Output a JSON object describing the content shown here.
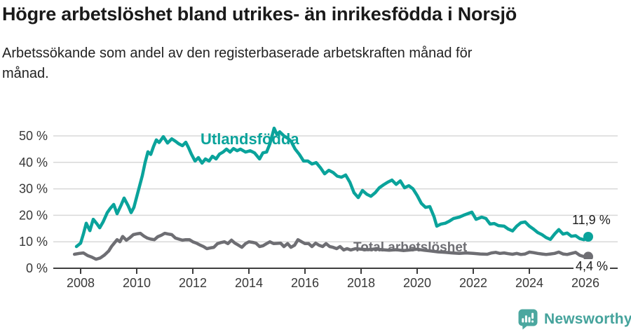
{
  "header": {
    "title": "Högre arbetslöshet bland utrikes- än inrikesfödda i Norsjö",
    "subtitle": "Arbetssökande som andel av den registerbaserade arbetskraften månad för månad."
  },
  "footer": {
    "brand": "Newsworthy",
    "logo_icon": "newsworthy-speech-bubble-bar-chart",
    "logo_color": "#4ba79f"
  },
  "chart_data": {
    "type": "line",
    "title": "Högre arbetslöshet bland utrikes- än inrikesfödda i Norsjö",
    "subtitle": "Arbetssökande som andel av den registerbaserade arbetskraften månad för månad.",
    "grid": true,
    "legend_position": "inline-labels-on-chart",
    "x_axis": {
      "label": "",
      "ticks": [
        2008,
        2010,
        2012,
        2014,
        2016,
        2018,
        2020,
        2022,
        2024,
        2026
      ],
      "tick_labels": [
        "2008",
        "2010",
        "2012",
        "2014",
        "2016",
        "2018",
        "2020",
        "2022",
        "2024",
        "2026"
      ],
      "range": [
        2007.75,
        2026.6
      ]
    },
    "y_axis": {
      "label": "",
      "unit": "%",
      "ticks": [
        0,
        10,
        20,
        30,
        40,
        50
      ],
      "tick_labels": [
        "0 %",
        "10 %",
        "20 %",
        "30 %",
        "40 %",
        "50 %"
      ],
      "range": [
        0,
        54
      ]
    },
    "series": [
      {
        "name": "Utlandsfödda",
        "color": "#0aa39b",
        "end_value": 11.9,
        "end_label": "11,9 %",
        "points": [
          [
            2007.85,
            8.2
          ],
          [
            2008.0,
            9.5
          ],
          [
            2008.1,
            13.0
          ],
          [
            2008.2,
            17.0
          ],
          [
            2008.33,
            14.2
          ],
          [
            2008.45,
            18.5
          ],
          [
            2008.58,
            16.8
          ],
          [
            2008.68,
            15.3
          ],
          [
            2008.8,
            17.5
          ],
          [
            2008.95,
            21.0
          ],
          [
            2009.05,
            22.5
          ],
          [
            2009.18,
            24.1
          ],
          [
            2009.3,
            20.6
          ],
          [
            2009.45,
            24.0
          ],
          [
            2009.55,
            26.5
          ],
          [
            2009.7,
            23.5
          ],
          [
            2009.8,
            21.0
          ],
          [
            2009.9,
            23.0
          ],
          [
            2010.0,
            27.0
          ],
          [
            2010.1,
            31.0
          ],
          [
            2010.2,
            35.0
          ],
          [
            2010.3,
            40.0
          ],
          [
            2010.4,
            44.0
          ],
          [
            2010.5,
            43.0
          ],
          [
            2010.6,
            46.0
          ],
          [
            2010.7,
            48.5
          ],
          [
            2010.8,
            47.5
          ],
          [
            2010.95,
            49.7
          ],
          [
            2011.1,
            47.3
          ],
          [
            2011.25,
            48.9
          ],
          [
            2011.38,
            48.0
          ],
          [
            2011.5,
            47.0
          ],
          [
            2011.63,
            46.3
          ],
          [
            2011.75,
            47.6
          ],
          [
            2011.85,
            45.5
          ],
          [
            2011.95,
            43.1
          ],
          [
            2012.08,
            40.5
          ],
          [
            2012.2,
            41.8
          ],
          [
            2012.33,
            39.7
          ],
          [
            2012.45,
            41.3
          ],
          [
            2012.58,
            40.5
          ],
          [
            2012.7,
            42.3
          ],
          [
            2012.83,
            41.3
          ],
          [
            2012.95,
            43.1
          ],
          [
            2013.08,
            43.9
          ],
          [
            2013.2,
            45.0
          ],
          [
            2013.33,
            43.9
          ],
          [
            2013.45,
            45.2
          ],
          [
            2013.58,
            44.4
          ],
          [
            2013.7,
            45.0
          ],
          [
            2013.88,
            43.9
          ],
          [
            2014.05,
            44.4
          ],
          [
            2014.2,
            43.6
          ],
          [
            2014.38,
            41.3
          ],
          [
            2014.5,
            43.6
          ],
          [
            2014.63,
            43.9
          ],
          [
            2014.75,
            47.0
          ],
          [
            2014.9,
            52.9
          ],
          [
            2015.0,
            50.5
          ],
          [
            2015.1,
            51.5
          ],
          [
            2015.25,
            50.0
          ],
          [
            2015.4,
            49.0
          ],
          [
            2015.5,
            48.0
          ],
          [
            2015.65,
            45.0
          ],
          [
            2015.8,
            43.0
          ],
          [
            2015.95,
            40.5
          ],
          [
            2016.1,
            40.5
          ],
          [
            2016.25,
            39.4
          ],
          [
            2016.4,
            39.9
          ],
          [
            2016.55,
            38.0
          ],
          [
            2016.7,
            35.7
          ],
          [
            2016.85,
            37.0
          ],
          [
            2017.0,
            36.2
          ],
          [
            2017.15,
            34.8
          ],
          [
            2017.3,
            34.4
          ],
          [
            2017.45,
            35.2
          ],
          [
            2017.6,
            32.5
          ],
          [
            2017.75,
            28.5
          ],
          [
            2017.9,
            26.7
          ],
          [
            2018.05,
            29.4
          ],
          [
            2018.2,
            28.0
          ],
          [
            2018.35,
            27.2
          ],
          [
            2018.5,
            28.5
          ],
          [
            2018.65,
            30.4
          ],
          [
            2018.8,
            31.5
          ],
          [
            2018.95,
            32.5
          ],
          [
            2019.1,
            33.3
          ],
          [
            2019.25,
            31.7
          ],
          [
            2019.4,
            33.0
          ],
          [
            2019.55,
            30.4
          ],
          [
            2019.7,
            31.2
          ],
          [
            2019.85,
            30.0
          ],
          [
            2020.0,
            27.5
          ],
          [
            2020.15,
            24.5
          ],
          [
            2020.3,
            23.0
          ],
          [
            2020.45,
            23.3
          ],
          [
            2020.6,
            19.5
          ],
          [
            2020.7,
            15.9
          ],
          [
            2020.85,
            16.7
          ],
          [
            2021.0,
            17.0
          ],
          [
            2021.15,
            17.8
          ],
          [
            2021.3,
            18.8
          ],
          [
            2021.5,
            19.3
          ],
          [
            2021.65,
            20.0
          ],
          [
            2021.8,
            20.6
          ],
          [
            2021.95,
            21.2
          ],
          [
            2022.1,
            18.5
          ],
          [
            2022.3,
            19.3
          ],
          [
            2022.45,
            18.8
          ],
          [
            2022.6,
            16.7
          ],
          [
            2022.75,
            16.9
          ],
          [
            2022.9,
            16.1
          ],
          [
            2023.1,
            15.9
          ],
          [
            2023.25,
            14.8
          ],
          [
            2023.4,
            14.1
          ],
          [
            2023.55,
            15.9
          ],
          [
            2023.7,
            17.2
          ],
          [
            2023.85,
            17.5
          ],
          [
            2024.0,
            15.9
          ],
          [
            2024.15,
            14.8
          ],
          [
            2024.3,
            13.5
          ],
          [
            2024.45,
            12.7
          ],
          [
            2024.6,
            11.6
          ],
          [
            2024.75,
            10.9
          ],
          [
            2024.9,
            12.9
          ],
          [
            2025.05,
            14.6
          ],
          [
            2025.2,
            12.9
          ],
          [
            2025.35,
            13.3
          ],
          [
            2025.5,
            12.1
          ],
          [
            2025.65,
            12.3
          ],
          [
            2025.8,
            11.2
          ],
          [
            2025.95,
            10.8
          ],
          [
            2026.1,
            11.9
          ]
        ]
      },
      {
        "name": "Total arbetslöshet",
        "color": "#6e6e73",
        "end_value": 4.4,
        "end_label": "4,4 %",
        "points": [
          [
            2007.78,
            5.3
          ],
          [
            2007.95,
            5.6
          ],
          [
            2008.1,
            5.8
          ],
          [
            2008.25,
            4.8
          ],
          [
            2008.4,
            4.2
          ],
          [
            2008.55,
            3.4
          ],
          [
            2008.7,
            3.9
          ],
          [
            2008.85,
            5.0
          ],
          [
            2009.0,
            6.5
          ],
          [
            2009.1,
            8.2
          ],
          [
            2009.2,
            9.5
          ],
          [
            2009.3,
            10.8
          ],
          [
            2009.4,
            10.0
          ],
          [
            2009.5,
            12.0
          ],
          [
            2009.63,
            10.6
          ],
          [
            2009.75,
            11.5
          ],
          [
            2009.88,
            12.7
          ],
          [
            2010.0,
            13.0
          ],
          [
            2010.13,
            13.2
          ],
          [
            2010.25,
            12.2
          ],
          [
            2010.38,
            11.4
          ],
          [
            2010.5,
            11.0
          ],
          [
            2010.63,
            10.8
          ],
          [
            2010.75,
            11.9
          ],
          [
            2010.88,
            12.5
          ],
          [
            2011.0,
            13.2
          ],
          [
            2011.13,
            12.9
          ],
          [
            2011.25,
            12.7
          ],
          [
            2011.38,
            11.4
          ],
          [
            2011.5,
            11.0
          ],
          [
            2011.63,
            10.6
          ],
          [
            2011.75,
            10.8
          ],
          [
            2011.88,
            10.8
          ],
          [
            2012.0,
            10.0
          ],
          [
            2012.13,
            9.5
          ],
          [
            2012.25,
            8.8
          ],
          [
            2012.38,
            8.2
          ],
          [
            2012.5,
            7.4
          ],
          [
            2012.63,
            7.7
          ],
          [
            2012.75,
            7.9
          ],
          [
            2012.88,
            9.3
          ],
          [
            2013.0,
            9.7
          ],
          [
            2013.13,
            10.0
          ],
          [
            2013.25,
            9.3
          ],
          [
            2013.38,
            10.6
          ],
          [
            2013.5,
            9.5
          ],
          [
            2013.63,
            8.7
          ],
          [
            2013.75,
            7.9
          ],
          [
            2013.88,
            9.3
          ],
          [
            2014.0,
            10.0
          ],
          [
            2014.13,
            9.8
          ],
          [
            2014.25,
            9.5
          ],
          [
            2014.38,
            8.2
          ],
          [
            2014.5,
            8.5
          ],
          [
            2014.63,
            9.3
          ],
          [
            2014.75,
            10.0
          ],
          [
            2014.88,
            9.3
          ],
          [
            2015.0,
            9.4
          ],
          [
            2015.13,
            9.5
          ],
          [
            2015.25,
            8.2
          ],
          [
            2015.38,
            9.3
          ],
          [
            2015.5,
            7.9
          ],
          [
            2015.63,
            8.7
          ],
          [
            2015.75,
            10.8
          ],
          [
            2015.88,
            10.0
          ],
          [
            2016.0,
            9.3
          ],
          [
            2016.13,
            9.3
          ],
          [
            2016.25,
            8.2
          ],
          [
            2016.38,
            9.5
          ],
          [
            2016.5,
            8.7
          ],
          [
            2016.63,
            8.2
          ],
          [
            2016.75,
            9.3
          ],
          [
            2016.88,
            8.2
          ],
          [
            2017.0,
            7.9
          ],
          [
            2017.13,
            7.4
          ],
          [
            2017.25,
            8.2
          ],
          [
            2017.38,
            6.9
          ],
          [
            2017.5,
            7.4
          ],
          [
            2017.63,
            6.9
          ],
          [
            2017.8,
            7.4
          ],
          [
            2018.0,
            7.2
          ],
          [
            2018.25,
            7.0
          ],
          [
            2018.5,
            7.3
          ],
          [
            2018.75,
            7.0
          ],
          [
            2019.0,
            6.8
          ],
          [
            2019.25,
            7.0
          ],
          [
            2019.5,
            6.7
          ],
          [
            2019.75,
            6.9
          ],
          [
            2020.0,
            7.2
          ],
          [
            2020.25,
            6.8
          ],
          [
            2020.5,
            6.5
          ],
          [
            2020.75,
            6.2
          ],
          [
            2021.0,
            6.0
          ],
          [
            2021.25,
            5.8
          ],
          [
            2021.5,
            5.6
          ],
          [
            2021.75,
            5.8
          ],
          [
            2022.0,
            5.6
          ],
          [
            2022.25,
            5.4
          ],
          [
            2022.5,
            5.3
          ],
          [
            2022.65,
            5.8
          ],
          [
            2022.8,
            6.0
          ],
          [
            2022.95,
            5.6
          ],
          [
            2023.1,
            5.8
          ],
          [
            2023.25,
            5.5
          ],
          [
            2023.4,
            5.3
          ],
          [
            2023.55,
            5.6
          ],
          [
            2023.7,
            5.2
          ],
          [
            2023.85,
            5.4
          ],
          [
            2024.0,
            6.1
          ],
          [
            2024.15,
            5.9
          ],
          [
            2024.3,
            5.6
          ],
          [
            2024.45,
            5.4
          ],
          [
            2024.6,
            5.2
          ],
          [
            2024.75,
            5.4
          ],
          [
            2024.9,
            5.6
          ],
          [
            2025.05,
            6.1
          ],
          [
            2025.2,
            5.4
          ],
          [
            2025.35,
            5.2
          ],
          [
            2025.5,
            5.6
          ],
          [
            2025.65,
            6.0
          ],
          [
            2025.8,
            4.9
          ],
          [
            2025.95,
            4.4
          ],
          [
            2026.1,
            4.4
          ]
        ]
      }
    ]
  }
}
